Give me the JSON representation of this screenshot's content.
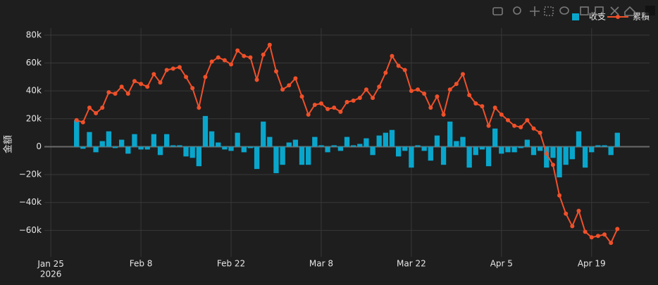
{
  "chart_data": {
    "type": "bar+line",
    "yaxis_title": "金額",
    "x": [
      "2026-01-29",
      "2026-01-30",
      "2026-01-31",
      "2026-02-01",
      "2026-02-02",
      "2026-02-03",
      "2026-02-04",
      "2026-02-05",
      "2026-02-06",
      "2026-02-07",
      "2026-02-08",
      "2026-02-09",
      "2026-02-10",
      "2026-02-11",
      "2026-02-12",
      "2026-02-13",
      "2026-02-14",
      "2026-02-15",
      "2026-02-16",
      "2026-02-17",
      "2026-02-18",
      "2026-02-19",
      "2026-02-20",
      "2026-02-21",
      "2026-02-22",
      "2026-02-23",
      "2026-02-24",
      "2026-02-25",
      "2026-02-26",
      "2026-02-27",
      "2026-02-28",
      "2026-03-01",
      "2026-03-02",
      "2026-03-03",
      "2026-03-04",
      "2026-03-05",
      "2026-03-06",
      "2026-03-07",
      "2026-03-08",
      "2026-03-09",
      "2026-03-10",
      "2026-03-11",
      "2026-03-12",
      "2026-03-13",
      "2026-03-14",
      "2026-03-15",
      "2026-03-16",
      "2026-03-17",
      "2026-03-18",
      "2026-03-19",
      "2026-03-20",
      "2026-03-21",
      "2026-03-22",
      "2026-03-23",
      "2026-03-24",
      "2026-03-25",
      "2026-03-26",
      "2026-03-27",
      "2026-03-28",
      "2026-03-29",
      "2026-03-30",
      "2026-03-31",
      "2026-04-01",
      "2026-04-02",
      "2026-04-03",
      "2026-04-04",
      "2026-04-05",
      "2026-04-06",
      "2026-04-07",
      "2026-04-08",
      "2026-04-09",
      "2026-04-10",
      "2026-04-11",
      "2026-04-12",
      "2026-04-13",
      "2026-04-14",
      "2026-04-15",
      "2026-04-16",
      "2026-04-17",
      "2026-04-18",
      "2026-04-19",
      "2026-04-20",
      "2026-04-21",
      "2026-04-22",
      "2026-04-23"
    ],
    "series": [
      {
        "name": "收支",
        "type": "bar",
        "color": "#09a6cc",
        "values": [
          19000,
          -1500,
          10500,
          -4000,
          4000,
          11000,
          -1000,
          5000,
          -5000,
          9000,
          -2000,
          -2000,
          9000,
          -6000,
          9000,
          1000,
          1000,
          -7000,
          -8000,
          -14000,
          22000,
          11000,
          3000,
          -2000,
          -3000,
          10000,
          -4000,
          -1000,
          -16000,
          18000,
          7000,
          -19000,
          -13000,
          3000,
          5000,
          -13000,
          -13000,
          7000,
          1000,
          -4000,
          1000,
          -3000,
          7000,
          1000,
          2000,
          6000,
          -6000,
          8000,
          10000,
          12000,
          -7000,
          -3000,
          -15000,
          1000,
          -3000,
          -10000,
          8000,
          -13000,
          18000,
          4000,
          7000,
          -15000,
          -6000,
          -2000,
          -14000,
          13000,
          -5000,
          -4000,
          -4000,
          -1000,
          5000,
          -6000,
          -3000,
          -15000,
          -8000,
          -22000,
          -13000,
          -9000,
          11000,
          -15000,
          -4000,
          1000,
          1000,
          -6000,
          10000
        ]
      },
      {
        "name": "累積",
        "type": "line",
        "color": "#f0502a",
        "values": [
          19000,
          17500,
          28000,
          24000,
          28000,
          39000,
          38000,
          43000,
          38000,
          47000,
          45000,
          43000,
          52000,
          46000,
          55000,
          56000,
          57000,
          50000,
          42000,
          28000,
          50000,
          61000,
          64000,
          62000,
          59000,
          69000,
          65000,
          64000,
          48000,
          66000,
          73000,
          54000,
          41000,
          44000,
          49000,
          36000,
          23000,
          30000,
          31000,
          27000,
          28000,
          25000,
          32000,
          33000,
          35000,
          41000,
          35000,
          43000,
          53000,
          65000,
          58000,
          55000,
          40000,
          41000,
          38000,
          28000,
          36000,
          23000,
          41000,
          45000,
          52000,
          37000,
          31000,
          29000,
          15000,
          28000,
          23000,
          19000,
          15000,
          14000,
          19000,
          13000,
          10000,
          -5000,
          -13000,
          -35000,
          -48000,
          -57000,
          -46000,
          -61000,
          -65000,
          -64000,
          -63000,
          -69000,
          -59000
        ]
      }
    ],
    "xlim": [
      "2026-01-24",
      "2026-04-28"
    ],
    "xticks": [
      {
        "value": "2026-01-25",
        "label": "Jan 25\n2026"
      },
      {
        "value": "2026-02-08",
        "label": "Feb 8"
      },
      {
        "value": "2026-02-22",
        "label": "Feb 22"
      },
      {
        "value": "2026-03-08",
        "label": "Mar 8"
      },
      {
        "value": "2026-03-22",
        "label": "Mar 22"
      },
      {
        "value": "2026-04-05",
        "label": "Apr 5"
      },
      {
        "value": "2026-04-19",
        "label": "Apr 19"
      }
    ],
    "ylim": [
      -79000,
      85000
    ],
    "yticks": [
      {
        "value": -60000,
        "label": "−60k"
      },
      {
        "value": -40000,
        "label": "−40k"
      },
      {
        "value": -20000,
        "label": "−20k"
      },
      0,
      {
        "value": 20000,
        "label": "20k"
      },
      {
        "value": 40000,
        "label": "40k"
      },
      {
        "value": 60000,
        "label": "60k"
      },
      {
        "value": 80000,
        "label": "80k"
      }
    ],
    "grid": true,
    "legend": "top-right"
  }
}
